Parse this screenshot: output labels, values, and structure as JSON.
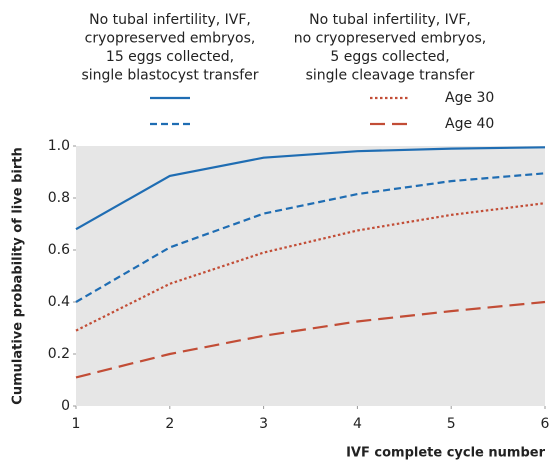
{
  "chart_data": {
    "type": "line",
    "xlabel": "IVF complete cycle number",
    "ylabel": "Cumulative probability of live birth",
    "x": [
      1,
      2,
      3,
      4,
      5,
      6
    ],
    "xlim": [
      1,
      6
    ],
    "xticks": [
      1,
      2,
      3,
      4,
      5,
      6
    ],
    "ylim": [
      0,
      1.0
    ],
    "yticks": [
      0,
      {
        "value": 0.2,
        "label": "0.2"
      },
      {
        "value": 0.4,
        "label": "0.4"
      },
      {
        "value": 0.6,
        "label": "0.6"
      },
      {
        "value": 0.8,
        "label": "0.8"
      },
      {
        "value": 1.0,
        "label": "1.0"
      }
    ],
    "grid": false,
    "legend": {
      "columns": [
        [
          "No tubal infertility, IVF,",
          "cryopreserved embryos,",
          "15 eggs collected,",
          "single blastocyst transfer"
        ],
        [
          "No tubal infertility, IVF,",
          "no cryopreserved embryos,",
          "5 eggs collected,",
          "single cleavage transfer"
        ]
      ],
      "rows": [
        "Age 30",
        "Age 40"
      ]
    },
    "series": [
      {
        "color": "#1f6db3",
        "dash": "solid",
        "values": [
          0.68,
          0.885,
          0.955,
          0.98,
          0.99,
          0.995
        ]
      },
      {
        "color": "#1f6db3",
        "dash": "dashed",
        "values": [
          0.4,
          0.61,
          0.74,
          0.815,
          0.865,
          0.895
        ]
      },
      {
        "color": "#c24d36",
        "dash": "dotted",
        "values": [
          0.29,
          0.47,
          0.59,
          0.675,
          0.735,
          0.78
        ]
      },
      {
        "color": "#c24d36",
        "dash": "longdash",
        "values": [
          0.11,
          0.2,
          0.27,
          0.325,
          0.365,
          0.4
        ]
      }
    ]
  }
}
